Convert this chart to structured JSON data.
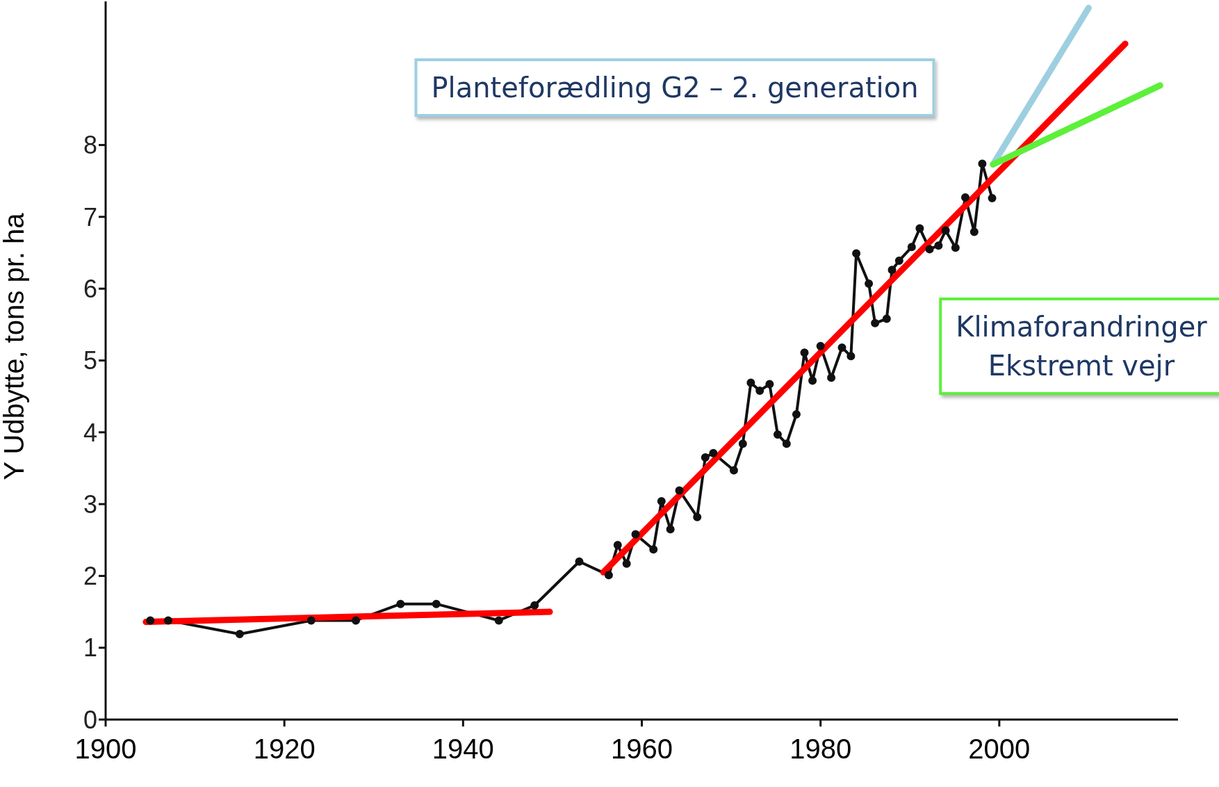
{
  "chart_data": {
    "type": "line",
    "ylabel": "Y  Udbytte, tons pr. ha",
    "xlim": [
      1900,
      2020
    ],
    "ylim": [
      0,
      10
    ],
    "xticks": [
      1900,
      1920,
      1940,
      1960,
      1980,
      2000
    ],
    "yticks": [
      0,
      1,
      2,
      3,
      4,
      5,
      6,
      7,
      8
    ],
    "line_style": "solid",
    "series": [
      {
        "color": "#111111",
        "marker": "circle",
        "x": [
          1905,
          1907,
          1915,
          1923,
          1928,
          1933,
          1937,
          1944,
          1948,
          1953,
          1956.3,
          1957.3,
          1958.3,
          1959.3,
          1961.3,
          1962.2,
          1963.2,
          1964.2,
          1966.2,
          1967.1,
          1968,
          1970.3,
          1971.3,
          1972.2,
          1973.2,
          1974.3,
          1975.2,
          1976.2,
          1977.3,
          1978.2,
          1979.1,
          1980,
          1981.2,
          1982.4,
          1983.4,
          1984,
          1985.4,
          1986.1,
          1987.4,
          1988,
          1988.8,
          1990.2,
          1991.1,
          1992.2,
          1993.2,
          1994,
          1995.1,
          1996.2,
          1997.2,
          1998.1,
          1999.2
        ],
        "values": [
          1.38,
          1.38,
          1.19,
          1.38,
          1.38,
          1.61,
          1.61,
          1.38,
          1.59,
          2.2,
          2.01,
          2.43,
          2.17,
          2.58,
          2.37,
          3.04,
          2.65,
          3.19,
          2.82,
          3.65,
          3.71,
          3.47,
          3.84,
          4.69,
          4.58,
          4.67,
          3.97,
          3.84,
          4.25,
          5.11,
          4.72,
          5.2,
          4.76,
          5.18,
          5.06,
          6.49,
          6.07,
          5.52,
          5.58,
          6.26,
          6.39,
          6.58,
          6.84,
          6.55,
          6.6,
          6.81,
          6.57,
          7.27,
          6.79,
          7.74,
          7.26
        ]
      },
      {
        "type": "line",
        "color": "#ff0000",
        "x": [
          1904.5,
          1949.7
        ],
        "values": [
          1.36,
          1.5
        ]
      },
      {
        "type": "line",
        "color": "#ff0000",
        "x": [
          1955.7,
          2014.1
        ],
        "values": [
          2.05,
          9.41
        ]
      },
      {
        "type": "line",
        "color": "#9dcfe0",
        "x": [
          1999.3,
          2010
        ],
        "values": [
          7.73,
          9.91
        ]
      },
      {
        "type": "line",
        "color": "#5cf03a",
        "x": [
          1999.3,
          2018
        ],
        "values": [
          7.73,
          8.83
        ]
      }
    ],
    "annotations": [
      "Planteforædling G2 – 2. generation",
      "Klimaforandringer\nEkstremt vejr"
    ]
  }
}
